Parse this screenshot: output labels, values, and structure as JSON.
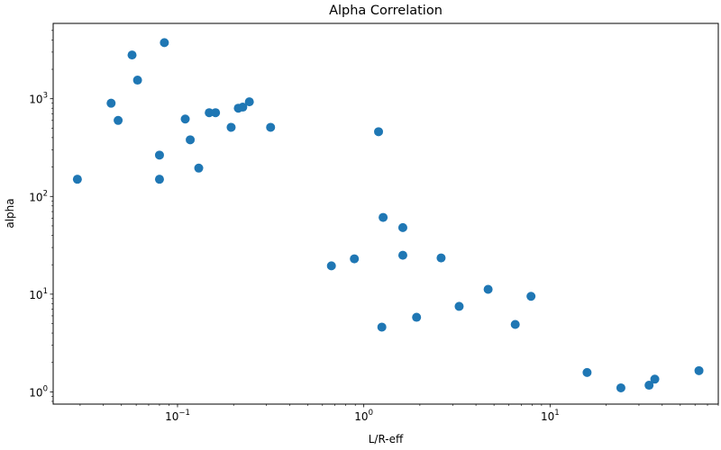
{
  "chart_data": {
    "type": "scatter",
    "title": "Alpha Correlation",
    "xlabel": "L/R-eff",
    "ylabel": "alpha",
    "xscale": "log",
    "yscale": "log",
    "xlim": [
      0.0215,
      80
    ],
    "ylim": [
      0.75,
      5900
    ],
    "grid": false,
    "marker_color": "#1f77b4",
    "xticks": [
      {
        "value": 0.1,
        "base": "10",
        "exp": "−1"
      },
      {
        "value": 1,
        "base": "10",
        "exp": "0"
      },
      {
        "value": 10,
        "base": "10",
        "exp": "1"
      }
    ],
    "yticks": [
      {
        "value": 1,
        "base": "10",
        "exp": "0"
      },
      {
        "value": 10,
        "base": "10",
        "exp": "1"
      },
      {
        "value": 100,
        "base": "10",
        "exp": "2"
      },
      {
        "value": 1000,
        "base": "10",
        "exp": "3"
      }
    ],
    "points": [
      {
        "x": 0.029,
        "y": 150
      },
      {
        "x": 0.044,
        "y": 900
      },
      {
        "x": 0.048,
        "y": 600
      },
      {
        "x": 0.057,
        "y": 2800
      },
      {
        "x": 0.061,
        "y": 1550
      },
      {
        "x": 0.08,
        "y": 265
      },
      {
        "x": 0.08,
        "y": 150
      },
      {
        "x": 0.085,
        "y": 3750
      },
      {
        "x": 0.11,
        "y": 620
      },
      {
        "x": 0.117,
        "y": 380
      },
      {
        "x": 0.13,
        "y": 195
      },
      {
        "x": 0.148,
        "y": 720
      },
      {
        "x": 0.16,
        "y": 720
      },
      {
        "x": 0.194,
        "y": 510
      },
      {
        "x": 0.212,
        "y": 800
      },
      {
        "x": 0.224,
        "y": 820
      },
      {
        "x": 0.243,
        "y": 930
      },
      {
        "x": 0.316,
        "y": 510
      },
      {
        "x": 0.67,
        "y": 19.5
      },
      {
        "x": 0.89,
        "y": 23
      },
      {
        "x": 1.2,
        "y": 460
      },
      {
        "x": 1.25,
        "y": 4.6
      },
      {
        "x": 1.27,
        "y": 61
      },
      {
        "x": 1.62,
        "y": 48
      },
      {
        "x": 1.62,
        "y": 25
      },
      {
        "x": 1.92,
        "y": 5.8
      },
      {
        "x": 2.6,
        "y": 23.5
      },
      {
        "x": 3.25,
        "y": 7.5
      },
      {
        "x": 4.65,
        "y": 11.2
      },
      {
        "x": 6.5,
        "y": 4.9
      },
      {
        "x": 7.9,
        "y": 9.5
      },
      {
        "x": 15.8,
        "y": 1.58
      },
      {
        "x": 24.0,
        "y": 1.1
      },
      {
        "x": 34.0,
        "y": 1.17
      },
      {
        "x": 36.5,
        "y": 1.35
      },
      {
        "x": 63.0,
        "y": 1.65
      }
    ]
  }
}
